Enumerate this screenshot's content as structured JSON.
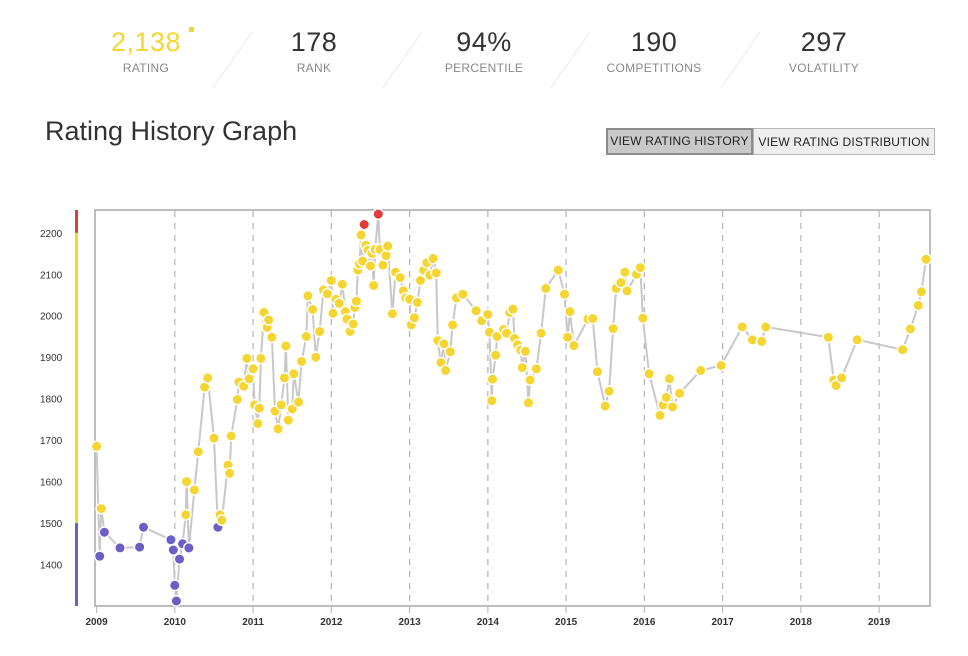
{
  "stats": [
    {
      "key": "rating",
      "value": "2,138",
      "label": "RATING"
    },
    {
      "key": "rank",
      "value": "178",
      "label": "RANK"
    },
    {
      "key": "percentile",
      "value": "94%",
      "label": "PERCENTILE"
    },
    {
      "key": "competitions",
      "value": "190",
      "label": "COMPETITIONS"
    },
    {
      "key": "volatility",
      "value": "297",
      "label": "VOLATILITY"
    }
  ],
  "title": "Rating History Graph",
  "buttons": {
    "history": "VIEW RATING HISTORY",
    "distribution": "VIEW RATING DISTRIBUTION"
  },
  "colors": {
    "yellow": "#f5d531",
    "blue": "#6b5fc7",
    "red": "#e23b3b",
    "line": "#c8c8c8",
    "frame": "#bdbdbd"
  },
  "chart_data": {
    "type": "scatter",
    "x_ticks": [
      "2009",
      "2010",
      "2011",
      "2012",
      "2013",
      "2014",
      "2015",
      "2016",
      "2017",
      "2018",
      "2019"
    ],
    "y_ticks": [
      1400,
      1500,
      1600,
      1700,
      1800,
      1900,
      2000,
      2100,
      2200
    ],
    "xlim": [
      2008.98,
      2019.65
    ],
    "ylim": [
      1300,
      2255
    ],
    "grid": "vertical dashed at year boundaries",
    "rating_bands": [
      {
        "min": 0,
        "max": 1500,
        "color": "#6b5fc7"
      },
      {
        "min": 1500,
        "max": 2200,
        "color": "#f5d531"
      },
      {
        "min": 2200,
        "max": 3000,
        "color": "#e23b3b"
      }
    ],
    "points": [
      [
        2009.0,
        1685
      ],
      [
        2009.04,
        1420
      ],
      [
        2009.06,
        1535
      ],
      [
        2009.1,
        1478
      ],
      [
        2009.3,
        1440
      ],
      [
        2009.55,
        1442
      ],
      [
        2009.6,
        1490
      ],
      [
        2009.95,
        1460
      ],
      [
        2009.98,
        1435
      ],
      [
        2010.0,
        1350
      ],
      [
        2010.02,
        1312
      ],
      [
        2010.06,
        1413
      ],
      [
        2010.1,
        1450
      ],
      [
        2010.14,
        1520
      ],
      [
        2010.15,
        1600
      ],
      [
        2010.18,
        1440
      ],
      [
        2010.25,
        1580
      ],
      [
        2010.3,
        1672
      ],
      [
        2010.38,
        1828
      ],
      [
        2010.42,
        1850
      ],
      [
        2010.5,
        1705
      ],
      [
        2010.55,
        1490
      ],
      [
        2010.58,
        1520
      ],
      [
        2010.6,
        1507
      ],
      [
        2010.68,
        1640
      ],
      [
        2010.7,
        1620
      ],
      [
        2010.72,
        1710
      ],
      [
        2010.8,
        1798
      ],
      [
        2010.82,
        1840
      ],
      [
        2010.88,
        1830
      ],
      [
        2010.92,
        1897
      ],
      [
        2010.95,
        1848
      ],
      [
        2011.0,
        1872
      ],
      [
        2011.02,
        1785
      ],
      [
        2011.06,
        1740
      ],
      [
        2011.08,
        1777
      ],
      [
        2011.1,
        1897
      ],
      [
        2011.14,
        2008
      ],
      [
        2011.18,
        1972
      ],
      [
        2011.2,
        1990
      ],
      [
        2011.24,
        1948
      ],
      [
        2011.28,
        1770
      ],
      [
        2011.32,
        1727
      ],
      [
        2011.36,
        1785
      ],
      [
        2011.4,
        1850
      ],
      [
        2011.42,
        1927
      ],
      [
        2011.45,
        1748
      ],
      [
        2011.5,
        1775
      ],
      [
        2011.52,
        1860
      ],
      [
        2011.58,
        1792
      ],
      [
        2011.62,
        1890
      ],
      [
        2011.68,
        1950
      ],
      [
        2011.7,
        2048
      ],
      [
        2011.76,
        2015
      ],
      [
        2011.8,
        1900
      ],
      [
        2011.85,
        1962
      ],
      [
        2011.9,
        2062
      ],
      [
        2011.95,
        2053
      ],
      [
        2012.0,
        2085
      ],
      [
        2012.02,
        2006
      ],
      [
        2012.06,
        2040
      ],
      [
        2012.1,
        2030
      ],
      [
        2012.14,
        2076
      ],
      [
        2012.18,
        2010
      ],
      [
        2012.2,
        1992
      ],
      [
        2012.24,
        1962
      ],
      [
        2012.28,
        1980
      ],
      [
        2012.3,
        2020
      ],
      [
        2012.32,
        2035
      ],
      [
        2012.34,
        2110
      ],
      [
        2012.36,
        2125
      ],
      [
        2012.38,
        2195
      ],
      [
        2012.4,
        2132
      ],
      [
        2012.42,
        2220
      ],
      [
        2012.44,
        2170
      ],
      [
        2012.47,
        2158
      ],
      [
        2012.5,
        2120
      ],
      [
        2012.52,
        2150
      ],
      [
        2012.54,
        2073
      ],
      [
        2012.56,
        2160
      ],
      [
        2012.6,
        2245
      ],
      [
        2012.62,
        2160
      ],
      [
        2012.66,
        2122
      ],
      [
        2012.7,
        2145
      ],
      [
        2012.72,
        2168
      ],
      [
        2012.78,
        2005
      ],
      [
        2012.82,
        2105
      ],
      [
        2012.88,
        2092
      ],
      [
        2012.92,
        2060
      ],
      [
        2012.95,
        2043
      ],
      [
        2013.0,
        2040
      ],
      [
        2013.02,
        1978
      ],
      [
        2013.06,
        1995
      ],
      [
        2013.1,
        2032
      ],
      [
        2013.14,
        2085
      ],
      [
        2013.18,
        2110
      ],
      [
        2013.22,
        2128
      ],
      [
        2013.26,
        2098
      ],
      [
        2013.3,
        2138
      ],
      [
        2013.34,
        2103
      ],
      [
        2013.36,
        1940
      ],
      [
        2013.4,
        1887
      ],
      [
        2013.44,
        1932
      ],
      [
        2013.46,
        1868
      ],
      [
        2013.52,
        1913
      ],
      [
        2013.55,
        1978
      ],
      [
        2013.6,
        2043
      ],
      [
        2013.68,
        2052
      ],
      [
        2013.85,
        2012
      ],
      [
        2013.92,
        1988
      ],
      [
        2014.0,
        2003
      ],
      [
        2014.02,
        1960
      ],
      [
        2014.05,
        1795
      ],
      [
        2014.06,
        1847
      ],
      [
        2014.1,
        1905
      ],
      [
        2014.12,
        1950
      ],
      [
        2014.2,
        1967
      ],
      [
        2014.24,
        1958
      ],
      [
        2014.28,
        2008
      ],
      [
        2014.32,
        2016
      ],
      [
        2014.34,
        1945
      ],
      [
        2014.38,
        1930
      ],
      [
        2014.42,
        1917
      ],
      [
        2014.44,
        1875
      ],
      [
        2014.48,
        1914
      ],
      [
        2014.52,
        1790
      ],
      [
        2014.54,
        1845
      ],
      [
        2014.62,
        1872
      ],
      [
        2014.68,
        1958
      ],
      [
        2014.74,
        2066
      ],
      [
        2014.9,
        2110
      ],
      [
        2014.98,
        2052
      ],
      [
        2015.02,
        1948
      ],
      [
        2015.05,
        2010
      ],
      [
        2015.1,
        1928
      ],
      [
        2015.28,
        1992
      ],
      [
        2015.34,
        1993
      ],
      [
        2015.4,
        1865
      ],
      [
        2015.5,
        1782
      ],
      [
        2015.55,
        1818
      ],
      [
        2015.6,
        1969
      ],
      [
        2015.64,
        2066
      ],
      [
        2015.7,
        2080
      ],
      [
        2015.75,
        2105
      ],
      [
        2015.78,
        2060
      ],
      [
        2015.9,
        2100
      ],
      [
        2015.95,
        2116
      ],
      [
        2015.98,
        1994
      ],
      [
        2016.06,
        1860
      ],
      [
        2016.2,
        1760
      ],
      [
        2016.24,
        1785
      ],
      [
        2016.28,
        1803
      ],
      [
        2016.32,
        1848
      ],
      [
        2016.36,
        1780
      ],
      [
        2016.45,
        1813
      ],
      [
        2016.72,
        1868
      ],
      [
        2016.98,
        1880
      ],
      [
        2017.25,
        1973
      ],
      [
        2017.38,
        1942
      ],
      [
        2017.5,
        1938
      ],
      [
        2017.55,
        1973
      ],
      [
        2018.35,
        1948
      ],
      [
        2018.42,
        1845
      ],
      [
        2018.45,
        1832
      ],
      [
        2018.52,
        1850
      ],
      [
        2018.72,
        1942
      ],
      [
        2019.3,
        1918
      ],
      [
        2019.4,
        1968
      ],
      [
        2019.5,
        2025
      ],
      [
        2019.54,
        2058
      ],
      [
        2019.6,
        2136
      ]
    ]
  }
}
